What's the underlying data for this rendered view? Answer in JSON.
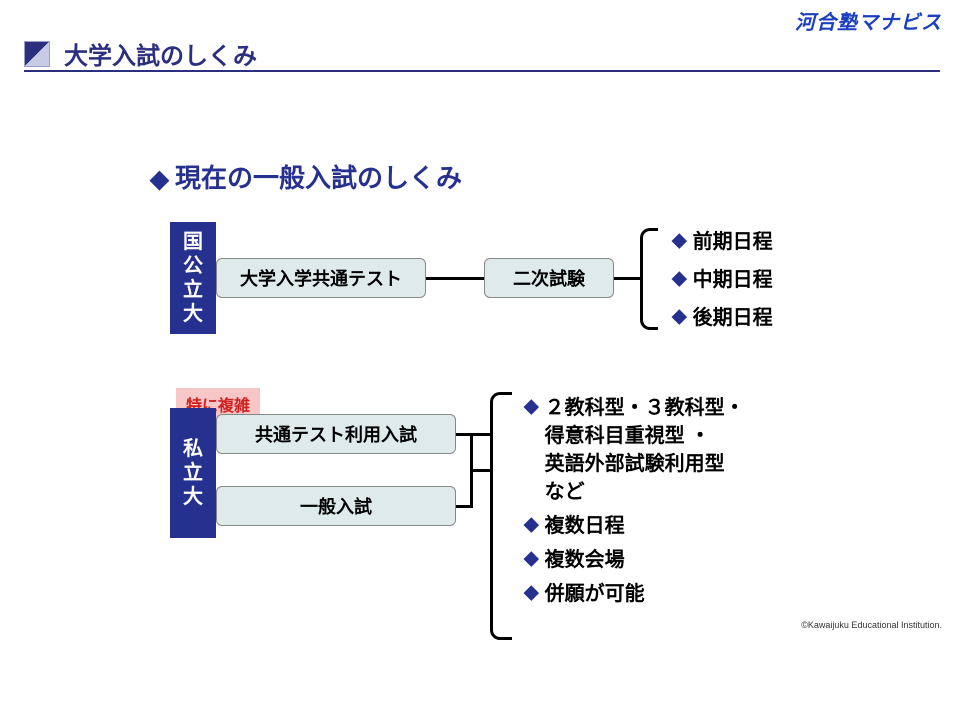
{
  "colors": {
    "brand": "#1a3fbf",
    "navy": "#26318f",
    "box_bg": "#dfeaea",
    "title_text": "#2b2f7e",
    "title_square_dark": "#2b2f7e",
    "title_square_light": "#c7cbe6",
    "underline": "#2b2f7e",
    "tag_bg": "#f7c7c7",
    "tag_text": "#d02020"
  },
  "logo": "河合塾マナビス",
  "page_title": "大学入試のしくみ",
  "sub_heading": "現在の一般入試のしくみ",
  "national": {
    "label_chars": [
      "国",
      "公",
      "立",
      "大"
    ],
    "box_common": "大学入学共通テスト",
    "box_second": "二次試験",
    "items": [
      "前期日程",
      "中期日程",
      "後期日程"
    ]
  },
  "private": {
    "label_chars": [
      "私",
      "立",
      "大"
    ],
    "tag": "特に複雑",
    "box1": "共通テスト利用入試",
    "box2": "一般入試",
    "items": [
      "２教科型・３教科型・\n得意科目重視型 ・\n英語外部試験利用型\nなど",
      "複数日程",
      "複数会場",
      "併願が可能"
    ]
  },
  "copyright": "©Kawaijuku Educational Institution."
}
